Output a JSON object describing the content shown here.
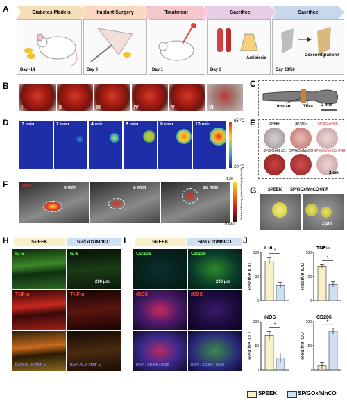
{
  "panels": {
    "A": "A",
    "B": "B",
    "C": "C",
    "D": "D",
    "E": "E",
    "F": "F",
    "G": "G",
    "H": "H",
    "I": "I",
    "J": "J"
  },
  "timeline": {
    "steps": [
      "Diabetes Models",
      "Implant Surgery",
      "Treatment",
      "Sacrifice",
      "Sacrifice"
    ],
    "days": [
      "Day -14",
      "Day 0",
      "Day 1",
      "Day 3",
      "Day 28/56"
    ],
    "notes": {
      "antibiosis": "Antibiosis",
      "osseo": "Osseointgrationn"
    },
    "colors": [
      "#f6dfb8",
      "#f9d7c2",
      "#f5c7cc",
      "#e7cde3",
      "#c7d8ec"
    ]
  },
  "surgery": {
    "labels": [
      "I",
      "II",
      "III",
      "IV",
      "V",
      "VI"
    ]
  },
  "implant": {
    "implant": "Implant",
    "tibia": "Tibia",
    "scale": "2 mm"
  },
  "thermal": {
    "times": [
      "0 min",
      "2 min",
      "4 min",
      "6 min",
      "8 min",
      "10 min"
    ],
    "scale_max": "65 °C",
    "scale_min": "20 °C"
  },
  "culture": {
    "labels": [
      "SPEEK",
      "SP/GOx",
      "SP/GOx+NIR",
      "SP/GOx/MnCl₂",
      "SP/GOx/MnCO",
      "SP/GOx/MnCO+NIR"
    ],
    "scale": "2 cm"
  },
  "fluor": {
    "dye": "DiR",
    "times": [
      "0 min",
      "5 min",
      "10 min"
    ],
    "scale_max": "1.20",
    "scale_min": "0.20",
    "unit": "×10⁹",
    "axis": "Radiant Efficiency (p/sec/cm²/sr)/(μW/cm²)"
  },
  "sem": {
    "left": "SPEEK",
    "right": "SP/GOx/MnCO+NIR",
    "scale": "2 μm"
  },
  "stainH": {
    "hdr_left": "SPEEK",
    "hdr_right": "SP/GOx/MnCO",
    "row1": "IL-6",
    "row2": "TNF-α",
    "row3": "DAPI / IL-6 / TNF-α",
    "scale": "200 μm"
  },
  "stainI": {
    "hdr_left": "SPEEK",
    "hdr_right": "SP/GOx/MnCO",
    "row1": "CD206",
    "row2": "iNOS",
    "row3": "DAPI / CD206 / iNOS",
    "scale": "200 μm"
  },
  "chart_data": [
    {
      "type": "bar",
      "title": "IL-6",
      "categories": [
        "SPEEK",
        "SP/GOx/MnCO"
      ],
      "values": [
        82,
        32
      ],
      "errors": [
        7,
        6
      ],
      "ylabel": "Relative IOD",
      "ylim": [
        0,
        100
      ],
      "yticks": [
        0,
        50,
        100
      ],
      "significance": "*"
    },
    {
      "type": "bar",
      "title": "TNF-α",
      "categories": [
        "SPEEK",
        "SP/GOx/MnCO"
      ],
      "values": [
        71,
        34
      ],
      "errors": [
        4,
        5
      ],
      "ylabel": "Relative IOD",
      "ylim": [
        0,
        100
      ],
      "yticks": [
        0,
        50,
        100
      ],
      "significance": "*"
    },
    {
      "type": "bar",
      "title": "iNOS",
      "categories": [
        "SPEEK",
        "SP/GOx/MnCO"
      ],
      "values": [
        71,
        25
      ],
      "errors": [
        8,
        10
      ],
      "ylabel": "Relative IOD",
      "ylim": [
        0,
        100
      ],
      "yticks": [
        0,
        50,
        100
      ],
      "significance": "*"
    },
    {
      "type": "bar",
      "title": "CD206",
      "categories": [
        "SPEEK",
        "SP/GOx/MnCO"
      ],
      "values": [
        9,
        80
      ],
      "errors": [
        6,
        6
      ],
      "ylabel": "Relative IOD",
      "ylim": [
        0,
        100
      ],
      "yticks": [
        0,
        50,
        100
      ],
      "significance": "*"
    }
  ],
  "legend": {
    "s1": "SPEEK",
    "s2": "SP/GOx/MnCO",
    "c1": "#faf0c8",
    "c2": "#cfe0f3"
  }
}
